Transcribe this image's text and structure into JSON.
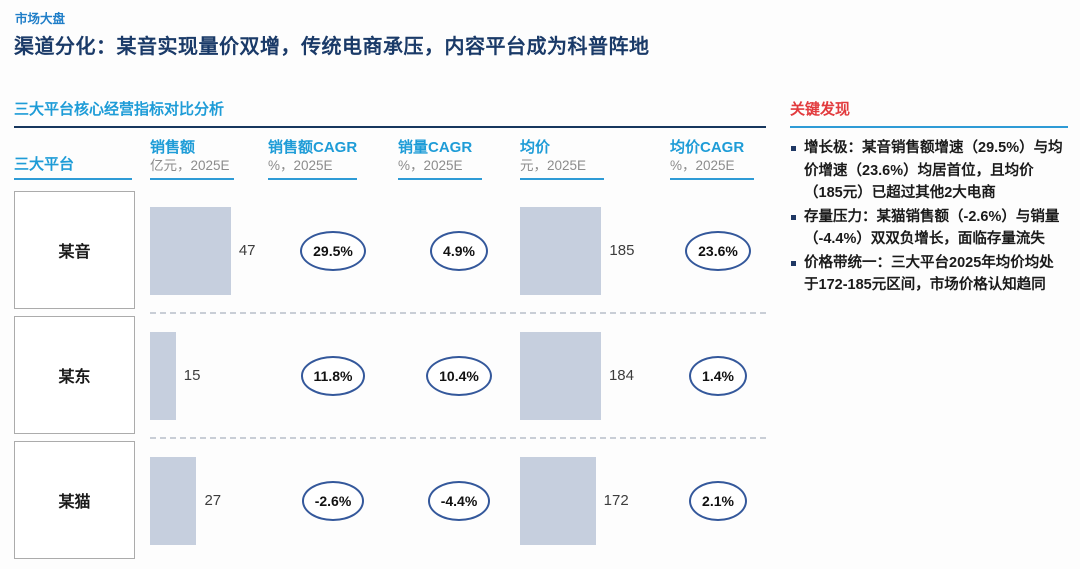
{
  "header": {
    "kicker": "市场大盘",
    "title": "渠道分化：某音实现量价双增，传统电商承压，内容平台成为科普阵地"
  },
  "table": {
    "section_title": "三大平台核心经营指标对比分析",
    "row_header": "三大平台",
    "columns": [
      {
        "label": "销售额",
        "sub": "亿元，2025E"
      },
      {
        "label": "销售额CAGR",
        "sub": "%，2025E"
      },
      {
        "label": "销量CAGR",
        "sub": "%，2025E"
      },
      {
        "label": "均价",
        "sub": "元，2025E"
      },
      {
        "label": "均价CAGR",
        "sub": "%，2025E"
      }
    ],
    "rows": [
      {
        "platform": "某音",
        "sales": "47",
        "sales_cagr": "29.5%",
        "volume_cagr": "4.9%",
        "price": "185",
        "price_cagr": "23.6%"
      },
      {
        "platform": "某东",
        "sales": "15",
        "sales_cagr": "11.8%",
        "volume_cagr": "10.4%",
        "price": "184",
        "price_cagr": "1.4%"
      },
      {
        "platform": "某猫",
        "sales": "27",
        "sales_cagr": "-2.6%",
        "volume_cagr": "-4.4%",
        "price": "172",
        "price_cagr": "2.1%"
      }
    ]
  },
  "findings": {
    "title": "关键发现",
    "bullets": [
      {
        "lead": "增长极：",
        "text": "某音销售额增速（29.5%）与均价增速（23.6%）均居首位，且均价（185元）已超过其他2大电商"
      },
      {
        "lead": "存量压力：",
        "text": "某猫销售额（-2.6%）与销量（-4.4%）双双负增长，面临存量流失"
      },
      {
        "lead": "价格带统一：",
        "text": "三大平台2025年均价均处于172-185元区间，市场价格认知趋同"
      }
    ]
  },
  "colors": {
    "kicker_blue": "#1F7EC8",
    "title_navy": "#1A3A68",
    "section_blue": "#1E9CD7",
    "underline_blue": "#2E9BD6",
    "dark_rule": "#17375E",
    "bar_fill": "#C6CFDE",
    "oval_border": "#34589B",
    "findings_red": "#E23B3E",
    "bullet_marker": "#1F3864"
  },
  "chart_data": {
    "type": "bar",
    "title": "三大平台核心经营指标对比分析",
    "categories": [
      "某音",
      "某东",
      "某猫"
    ],
    "series": [
      {
        "name": "销售额",
        "unit": "亿元，2025E",
        "values": [
          47,
          15,
          27
        ]
      },
      {
        "name": "销售额CAGR",
        "unit": "%，2025E",
        "values": [
          29.5,
          11.8,
          -2.6
        ]
      },
      {
        "name": "销量CAGR",
        "unit": "%，2025E",
        "values": [
          4.9,
          10.4,
          -4.4
        ]
      },
      {
        "name": "均价",
        "unit": "元，2025E",
        "values": [
          185,
          184,
          172
        ]
      },
      {
        "name": "均价CAGR",
        "unit": "%，2025E",
        "values": [
          23.6,
          1.4,
          2.1
        ]
      }
    ],
    "layout": {
      "bar_orientation": "horizontal-width",
      "grid": false,
      "legend": "none"
    }
  }
}
